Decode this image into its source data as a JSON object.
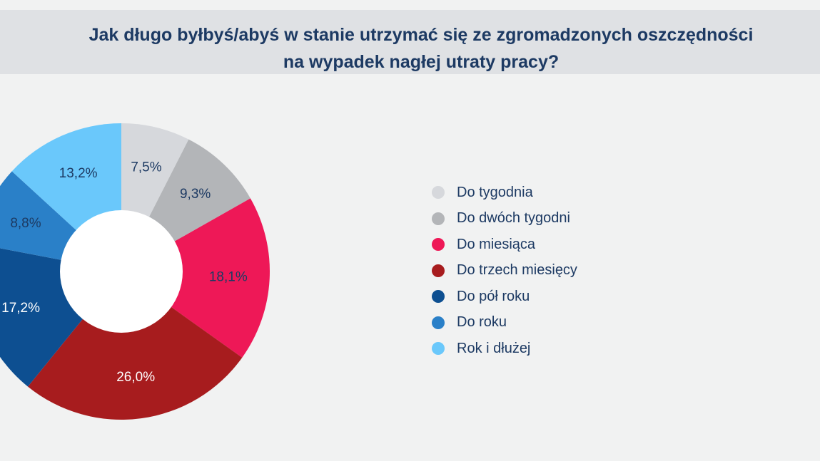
{
  "title": {
    "line1": "Jak długo byłbyś/abyś w stanie utrzymać się ze zgromadzonych oszczędności",
    "line2": "na wypadek nagłej utraty pracy?"
  },
  "chart_data": {
    "type": "pie",
    "donut": true,
    "title": "Jak długo byłbyś/abyś w stanie utrzymać się ze zgromadzonych oszczędności na wypadek nagłej utraty pracy?",
    "legend_position": "right",
    "slices": [
      {
        "name": "Do tygodnia",
        "value": 7.5,
        "label": "7,5%",
        "color": "#d6d8dc",
        "label_color": "#1d3a63"
      },
      {
        "name": "Do dwóch tygodni",
        "value": 9.3,
        "label": "9,3%",
        "color": "#b3b5b8",
        "label_color": "#1d3a63"
      },
      {
        "name": "Do miesiąca",
        "value": 18.1,
        "label": "18,1%",
        "color": "#ee1857",
        "label_color": "#1d3a63"
      },
      {
        "name": "Do trzech miesięcy",
        "value": 26.0,
        "label": "26,0%",
        "color": "#a71c1e",
        "label_color": "#ffffff"
      },
      {
        "name": "Do pół roku",
        "value": 17.2,
        "label": "17,2%",
        "color": "#0d4f91",
        "label_color": "#ffffff"
      },
      {
        "name": "Do roku",
        "value": 8.8,
        "label": "8,8%",
        "color": "#2a80c8",
        "label_color": "#1d3a63"
      },
      {
        "name": "Rok i dłużej",
        "value": 13.2,
        "label": "13,2%",
        "color": "#6ac8fb",
        "label_color": "#1d3a63"
      }
    ]
  }
}
